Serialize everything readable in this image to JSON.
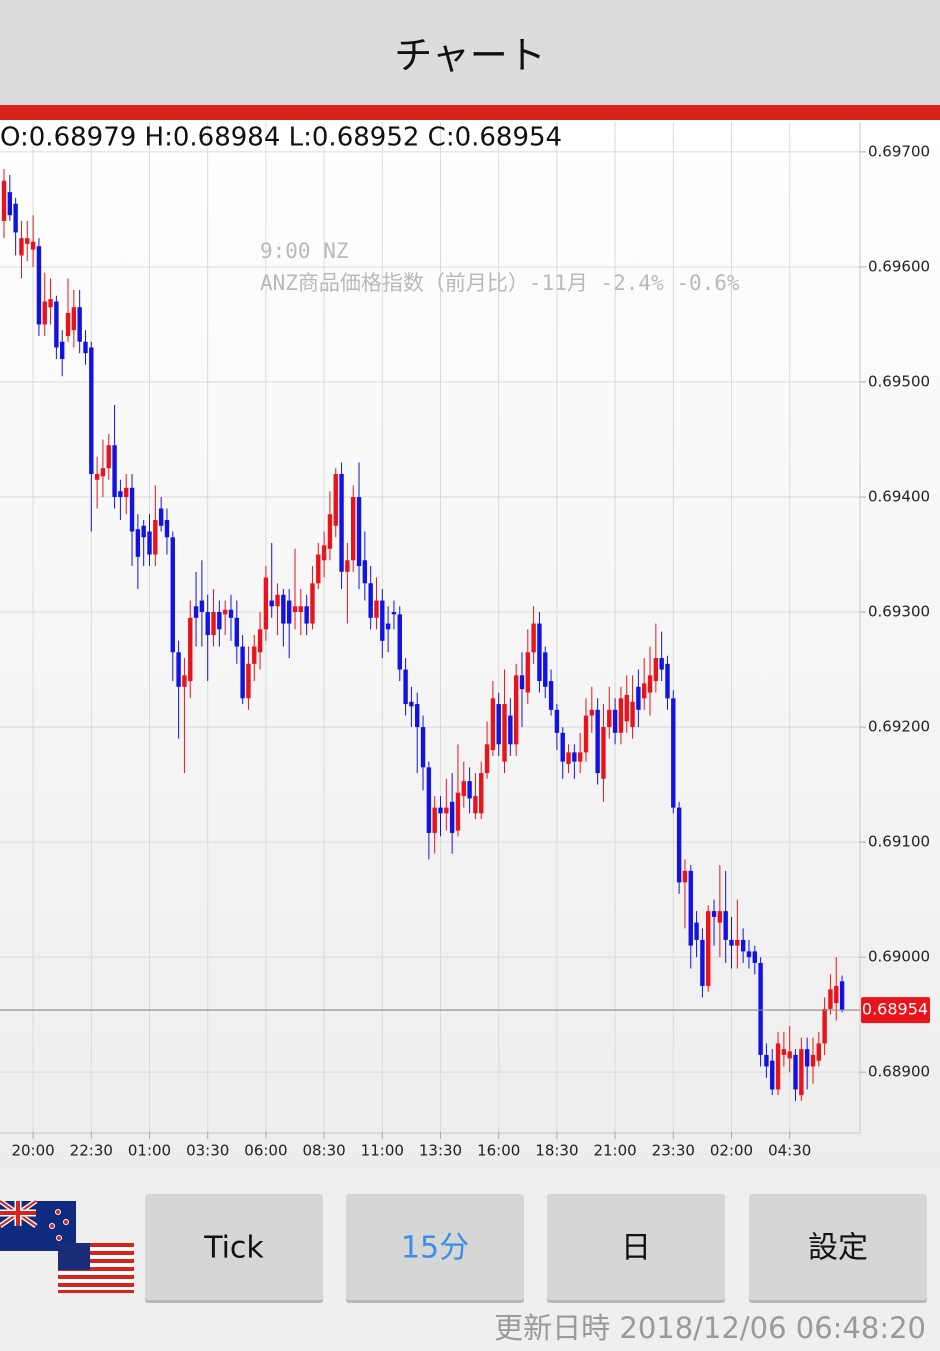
{
  "header": {
    "title": "チャート"
  },
  "ohlc_label": "O:0.68979 H:0.68984 L:0.68952 C:0.68954",
  "chart_data": {
    "type": "candlestick",
    "categories": [
      null,
      null,
      null,
      null,
      null,
      "20:00",
      null,
      null,
      null,
      null,
      null,
      null,
      null,
      null,
      null,
      "22:30",
      null,
      null,
      null,
      null,
      null,
      null,
      null,
      null,
      null,
      "01:00",
      null,
      null,
      null,
      null,
      null,
      null,
      null,
      null,
      null,
      "03:30",
      null,
      null,
      null,
      null,
      null,
      null,
      null,
      null,
      null,
      "06:00",
      null,
      null,
      null,
      null,
      null,
      null,
      null,
      null,
      null,
      "08:30",
      null,
      null,
      null,
      null,
      null,
      null,
      null,
      null,
      null,
      "11:00",
      null,
      null,
      null,
      null,
      null,
      null,
      null,
      null,
      null,
      "13:30",
      null,
      null,
      null,
      null,
      null,
      null,
      null,
      null,
      null,
      "16:00",
      null,
      null,
      null,
      null,
      null,
      null,
      null,
      null,
      null,
      "18:30",
      null,
      null,
      null,
      null,
      null,
      null,
      null,
      null,
      null,
      "21:00",
      null,
      null,
      null,
      null,
      null,
      null,
      null,
      null,
      null,
      "23:30",
      null,
      null,
      null,
      null,
      null,
      null,
      null,
      null,
      null,
      "02:00",
      null,
      null,
      null,
      null,
      null,
      null,
      null,
      null,
      null,
      "04:30",
      null,
      null,
      null,
      null,
      null,
      null,
      null,
      null,
      null
    ],
    "open": [
      0.6964,
      0.69665,
      0.69655,
      0.6961,
      0.6962,
      0.69615,
      0.69618,
      0.6955,
      0.69565,
      0.6957,
      0.69535,
      0.6954,
      0.69545,
      0.69565,
      0.69535,
      0.6953,
      0.69415,
      0.69418,
      0.69425,
      0.69445,
      0.69405,
      0.694,
      0.69408,
      0.69372,
      0.69375,
      0.6937,
      0.6935,
      0.6939,
      0.6938,
      0.69365,
      0.69265,
      0.69235,
      0.6924,
      0.69305,
      0.6931,
      0.693,
      0.6928,
      0.693,
      0.69298,
      0.69302,
      0.69295,
      0.6927,
      0.69225,
      0.69255,
      0.69265,
      0.69285,
      0.6931,
      0.69305,
      0.69315,
      0.6931,
      0.693,
      0.693,
      0.69305,
      0.6929,
      0.69325,
      0.69345,
      0.69355,
      0.69375,
      0.6942,
      0.69335,
      0.69345,
      0.694,
      0.69345,
      0.69325,
      0.69295,
      0.6931,
      0.6929,
      0.693,
      0.69298,
      0.6925,
      0.69222,
      0.6922,
      0.692,
      0.69165,
      0.69108,
      0.6913,
      0.69125,
      0.69135,
      0.6911,
      0.6914,
      0.69153,
      0.69125,
      0.69125,
      0.6916,
      0.6918,
      0.6922,
      0.6917,
      0.6921,
      0.69185,
      0.69245,
      0.6923,
      0.69265,
      0.6929,
      0.69265,
      0.6924,
      0.69215,
      0.69195,
      0.69168,
      0.69178,
      0.6917,
      0.69178,
      0.6921,
      0.69215,
      0.69155,
      0.692,
      0.69215,
      0.69195,
      0.69205,
      0.692,
      0.69235,
      0.69225,
      0.6923,
      0.6924,
      0.6926,
      0.69255,
      0.69225,
      0.6913,
      0.69065,
      0.69075,
      0.6903,
      0.69015,
      0.68975,
      0.6904,
      0.6903,
      0.6904,
      0.69015,
      0.6901,
      0.69015,
      0.69005,
      0.69005,
      0.68995,
      0.68915,
      0.6891,
      0.68885,
      0.68915,
      0.68912,
      0.68915,
      0.6888,
      0.6892,
      0.68905,
      0.6891,
      0.68925,
      0.68955,
      0.6896,
      0.68979
    ],
    "high": [
      0.69685,
      0.6968,
      0.6966,
      0.6964,
      0.6964,
      0.69645,
      0.69625,
      0.69595,
      0.6959,
      0.69575,
      0.69545,
      0.6959,
      0.6958,
      0.6958,
      0.69545,
      0.69535,
      0.69435,
      0.6945,
      0.69455,
      0.6948,
      0.69415,
      0.6942,
      0.6942,
      0.69385,
      0.6938,
      0.69385,
      0.6941,
      0.694,
      0.6939,
      0.6937,
      0.69275,
      0.6926,
      0.6931,
      0.69335,
      0.69345,
      0.69315,
      0.6932,
      0.6931,
      0.6931,
      0.69315,
      0.6931,
      0.6928,
      0.6927,
      0.6928,
      0.693,
      0.6934,
      0.6936,
      0.69325,
      0.6932,
      0.6932,
      0.69355,
      0.6932,
      0.69315,
      0.6934,
      0.6936,
      0.6937,
      0.69405,
      0.69425,
      0.6943,
      0.6936,
      0.6941,
      0.6943,
      0.6937,
      0.6934,
      0.6933,
      0.6932,
      0.69305,
      0.6931,
      0.69305,
      0.6926,
      0.69235,
      0.6923,
      0.6921,
      0.6917,
      0.6914,
      0.6914,
      0.69155,
      0.6916,
      0.69185,
      0.6917,
      0.69165,
      0.6916,
      0.6917,
      0.69205,
      0.6924,
      0.6923,
      0.6925,
      0.69225,
      0.69255,
      0.69265,
      0.69285,
      0.69305,
      0.693,
      0.6927,
      0.6925,
      0.6922,
      0.692,
      0.69185,
      0.69185,
      0.69195,
      0.69225,
      0.69235,
      0.69225,
      0.6922,
      0.69235,
      0.69225,
      0.69235,
      0.69245,
      0.69245,
      0.6925,
      0.6926,
      0.6927,
      0.6929,
      0.69283,
      0.69262,
      0.69232,
      0.69135,
      0.69085,
      0.6908,
      0.6904,
      0.69025,
      0.69045,
      0.6905,
      0.6908,
      0.69075,
      0.69035,
      0.6905,
      0.69025,
      0.69015,
      0.6901,
      0.69,
      0.68925,
      0.6892,
      0.68935,
      0.68935,
      0.6894,
      0.6892,
      0.6893,
      0.6893,
      0.6893,
      0.68935,
      0.68965,
      0.68985,
      0.69,
      0.68984
    ],
    "low": [
      0.69625,
      0.6964,
      0.6961,
      0.6959,
      0.69605,
      0.696,
      0.6954,
      0.6954,
      0.6955,
      0.6952,
      0.69505,
      0.69535,
      0.6953,
      0.69525,
      0.69515,
      0.6937,
      0.6939,
      0.694,
      0.69415,
      0.6939,
      0.6938,
      0.69385,
      0.6934,
      0.6932,
      0.6934,
      0.6934,
      0.6934,
      0.6937,
      0.6935,
      0.6924,
      0.6919,
      0.6916,
      0.69225,
      0.6927,
      0.6927,
      0.6924,
      0.6927,
      0.6927,
      0.6928,
      0.69275,
      0.69255,
      0.6922,
      0.69215,
      0.6924,
      0.6925,
      0.69275,
      0.69295,
      0.6928,
      0.6927,
      0.6926,
      0.69285,
      0.6928,
      0.6928,
      0.69285,
      0.6932,
      0.6933,
      0.69345,
      0.69365,
      0.6932,
      0.6929,
      0.69335,
      0.6932,
      0.6931,
      0.69285,
      0.69285,
      0.6926,
      0.69265,
      0.69285,
      0.6924,
      0.6921,
      0.692,
      0.6916,
      0.69145,
      0.69085,
      0.6909,
      0.69105,
      0.6911,
      0.6909,
      0.69105,
      0.6913,
      0.69125,
      0.6912,
      0.6912,
      0.69155,
      0.69175,
      0.69175,
      0.6916,
      0.69175,
      0.69175,
      0.692,
      0.6922,
      0.69255,
      0.6923,
      0.69225,
      0.6921,
      0.6918,
      0.69155,
      0.6916,
      0.69155,
      0.6916,
      0.6917,
      0.69195,
      0.6915,
      0.69135,
      0.6919,
      0.69185,
      0.69185,
      0.69195,
      0.6919,
      0.692,
      0.69215,
      0.6921,
      0.6923,
      0.6924,
      0.69215,
      0.69125,
      0.69055,
      0.69025,
      0.6899,
      0.69,
      0.68965,
      0.6897,
      0.6901,
      0.69,
      0.68995,
      0.6899,
      0.6899,
      0.68995,
      0.6899,
      0.68985,
      0.68905,
      0.68895,
      0.6888,
      0.6888,
      0.68905,
      0.689,
      0.68875,
      0.68875,
      0.68885,
      0.6889,
      0.68905,
      0.68915,
      0.6895,
      0.68945,
      0.68952
    ],
    "close": [
      0.69675,
      0.69645,
      0.6963,
      0.69625,
      0.69625,
      0.69622,
      0.6955,
      0.6957,
      0.69572,
      0.6953,
      0.6952,
      0.6956,
      0.69565,
      0.69535,
      0.69525,
      0.6942,
      0.6942,
      0.69425,
      0.69445,
      0.694,
      0.694,
      0.69408,
      0.6937,
      0.69348,
      0.69365,
      0.6935,
      0.6938,
      0.69375,
      0.69365,
      0.69265,
      0.69235,
      0.69245,
      0.69295,
      0.69295,
      0.693,
      0.6928,
      0.693,
      0.69285,
      0.69302,
      0.69295,
      0.6927,
      0.69225,
      0.69255,
      0.6927,
      0.69285,
      0.6933,
      0.69305,
      0.69315,
      0.6929,
      0.6929,
      0.69305,
      0.69305,
      0.6929,
      0.69325,
      0.6935,
      0.69358,
      0.69385,
      0.6942,
      0.69335,
      0.69345,
      0.694,
      0.6934,
      0.69325,
      0.69295,
      0.6931,
      0.69275,
      0.69285,
      0.69298,
      0.6925,
      0.6922,
      0.69218,
      0.692,
      0.69165,
      0.69108,
      0.6913,
      0.69125,
      0.6913,
      0.69108,
      0.69143,
      0.69153,
      0.69138,
      0.6914,
      0.6916,
      0.69185,
      0.69225,
      0.69185,
      0.6922,
      0.69185,
      0.69245,
      0.69233,
      0.69265,
      0.6929,
      0.6924,
      0.69235,
      0.69215,
      0.69195,
      0.6917,
      0.69178,
      0.6917,
      0.69178,
      0.6921,
      0.69215,
      0.6916,
      0.692,
      0.69215,
      0.69195,
      0.69225,
      0.69228,
      0.69222,
      0.69215,
      0.69238,
      0.69245,
      0.6926,
      0.6925,
      0.69225,
      0.6913,
      0.69065,
      0.69075,
      0.6901,
      0.69015,
      0.68975,
      0.6904,
      0.69035,
      0.6904,
      0.69015,
      0.6901,
      0.69015,
      0.69005,
      0.69,
      0.68995,
      0.68915,
      0.68905,
      0.68885,
      0.68925,
      0.6892,
      0.68918,
      0.68885,
      0.6892,
      0.68905,
      0.68915,
      0.68925,
      0.68955,
      0.68972,
      0.68975,
      0.68954
    ],
    "up_color": "#e8131b",
    "down_color": "#1212e2",
    "ylim": [
      0.68848,
      0.69726
    ],
    "yticks": [
      {
        "value": 0.689,
        "label": "0.68900"
      },
      {
        "value": 0.69,
        "label": "0.69000"
      },
      {
        "value": 0.691,
        "label": "0.69100"
      },
      {
        "value": 0.692,
        "label": "0.69200"
      },
      {
        "value": 0.693,
        "label": "0.69300"
      },
      {
        "value": 0.694,
        "label": "0.69400"
      },
      {
        "value": 0.695,
        "label": "0.69500"
      },
      {
        "value": 0.696,
        "label": "0.69600"
      },
      {
        "value": 0.697,
        "label": "0.69700"
      }
    ],
    "grid": true,
    "current_price": {
      "value": 0.68954,
      "label": "0.68954"
    },
    "annotations": [
      "9:00 NZ",
      "ANZ商品価格指数（前月比）-11月 -2.4% -0.6%"
    ]
  },
  "buttons": [
    "Tick",
    "15分",
    "日",
    "設定"
  ],
  "footer": {
    "updated": "更新日時 2018/12/06 06:48:20"
  }
}
